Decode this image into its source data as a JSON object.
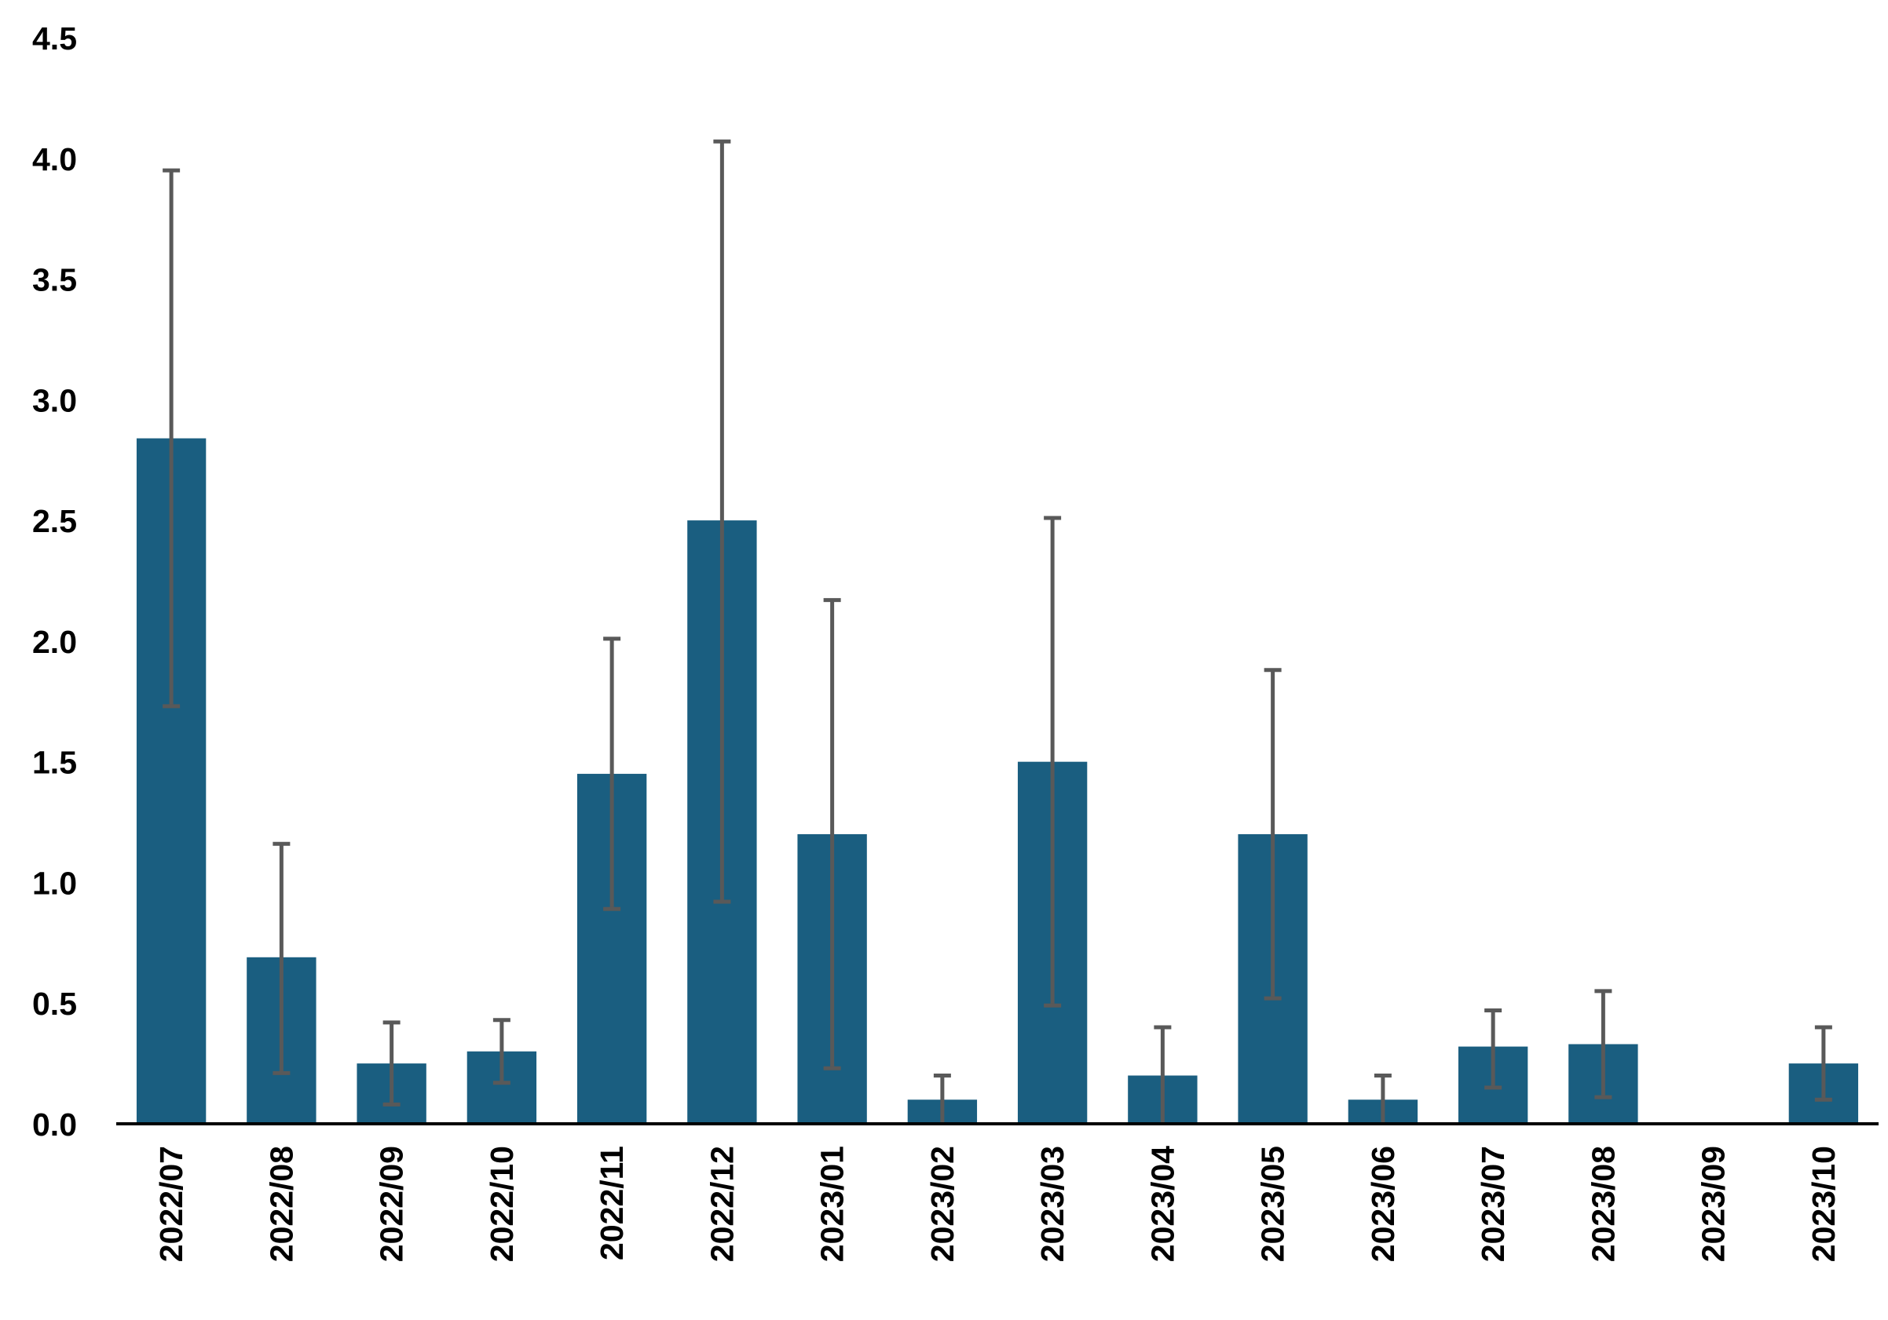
{
  "chart_data": {
    "type": "bar",
    "title": "",
    "xlabel": "",
    "ylabel": "",
    "categories": [
      "2022/07",
      "2022/08",
      "2022/09",
      "2022/10",
      "2022/11",
      "2022/12",
      "2023/01",
      "2023/02",
      "2023/03",
      "2023/04",
      "2023/05",
      "2023/06",
      "2023/07",
      "2023/08",
      "2023/09",
      "2023/10"
    ],
    "series": [
      {
        "values": [
          2.84,
          0.69,
          0.25,
          0.3,
          1.45,
          2.5,
          1.2,
          0.1,
          1.5,
          0.2,
          1.2,
          0.1,
          0.32,
          0.33,
          0.0,
          0.25
        ],
        "error_low": [
          1.73,
          0.21,
          0.08,
          0.17,
          0.89,
          0.92,
          0.23,
          0.0,
          0.49,
          0.0,
          0.52,
          0.0,
          0.15,
          0.11,
          0.0,
          0.1
        ],
        "error_high": [
          3.95,
          1.16,
          0.42,
          0.43,
          2.01,
          4.07,
          2.17,
          0.2,
          2.51,
          0.4,
          1.88,
          0.2,
          0.47,
          0.55,
          0.0,
          0.4
        ]
      }
    ],
    "ylim": [
      0,
      4.5
    ],
    "yticks": [
      "0.0",
      "0.5",
      "1.0",
      "1.5",
      "2.0",
      "2.5",
      "3.0",
      "3.5",
      "4.0",
      "4.5"
    ],
    "grid": false,
    "legend": "none",
    "colors": {
      "bar": "#1a5e80",
      "error_bar": "#595959",
      "axis": "#000000"
    }
  }
}
